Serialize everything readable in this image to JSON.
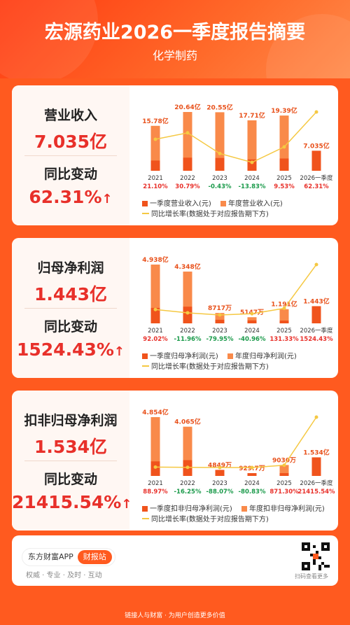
{
  "header": {
    "title": "宏源药业2026一季度报告摘要",
    "subtitle": "化学制药"
  },
  "sections": [
    {
      "metric_label": "营业收入",
      "metric_value": "7.035亿",
      "change_label": "同比变动",
      "change_value": "62.31%",
      "legend": {
        "q1": "一季度营业收入(元)",
        "annual": "年度营业收入(元)",
        "growth": "同比增长率(数据处于对应报告期下方)"
      },
      "chart_data": {
        "type": "bar",
        "categories": [
          "2021",
          "2022",
          "2023",
          "2024",
          "2025",
          "2026一季度"
        ],
        "annual_labels": [
          "15.78亿",
          "20.64亿",
          "20.55亿",
          "17.71亿",
          "19.39亿",
          "7.035亿"
        ],
        "annual_values": [
          15.78,
          20.64,
          20.55,
          17.71,
          19.39,
          null
        ],
        "q1_values": [
          3.6,
          4.6,
          4.5,
          4.0,
          4.3,
          7.035
        ],
        "growth_labels": [
          "21.10%",
          "30.79%",
          "-0.43%",
          "-13.83%",
          "9.53%",
          "62.31%"
        ],
        "growth_values": [
          21.1,
          30.79,
          -0.43,
          -13.83,
          9.53,
          62.31
        ]
      }
    },
    {
      "metric_label": "归母净利润",
      "metric_value": "1.443亿",
      "change_label": "同比变动",
      "change_value": "1524.43%",
      "legend": {
        "q1": "一季度归母净利润(元)",
        "annual": "年度归母净利润(元)",
        "growth": "同比增长率(数据处于对应报告期下方)"
      },
      "chart_data": {
        "type": "bar",
        "categories": [
          "2021",
          "2022",
          "2023",
          "2024",
          "2025",
          "2026一季度"
        ],
        "annual_labels": [
          "4.938亿",
          "4.348亿",
          "8717万",
          "5147万",
          "1.191亿",
          "1.443亿"
        ],
        "annual_values": [
          4.938,
          4.348,
          0.8717,
          0.5147,
          1.191,
          null
        ],
        "q1_values": [
          1.3,
          1.4,
          0.3,
          0.25,
          0.2,
          1.443
        ],
        "growth_labels": [
          "92.02%",
          "-11.96%",
          "-79.95%",
          "-40.96%",
          "131.33%",
          "1524.43%"
        ],
        "growth_values": [
          92.02,
          -11.96,
          -79.95,
          -40.96,
          131.33,
          1524.43
        ]
      }
    },
    {
      "metric_label": "扣非归母净利润",
      "metric_value": "1.534亿",
      "change_label": "同比变动",
      "change_value": "21415.54%",
      "legend": {
        "q1": "一季度扣非归母净利润(元)",
        "annual": "年度扣非归母净利润(元)",
        "growth": "同比增长率(数据处于对应报告期下方)"
      },
      "chart_data": {
        "type": "bar",
        "categories": [
          "2021",
          "2022",
          "2023",
          "2024",
          "2025",
          "2026一季度"
        ],
        "annual_labels": [
          "4.854亿",
          "4.065亿",
          "4849万",
          "929.7万",
          "9030万",
          "1.534亿"
        ],
        "annual_values": [
          4.854,
          4.065,
          0.4849,
          0.093,
          0.903,
          null
        ],
        "q1_values": [
          1.2,
          1.3,
          0.5,
          0.2,
          0.1,
          1.534
        ],
        "growth_labels": [
          "88.97%",
          "-16.25%",
          "-88.07%",
          "-80.83%",
          "871.30%",
          "21415.54%"
        ],
        "growth_values": [
          88.97,
          -16.25,
          -88.07,
          -80.83,
          871.3,
          21415.54
        ]
      }
    }
  ],
  "footer": {
    "app_name": "东方财富APP",
    "button": "财报站",
    "slogan": "权威 · 专业 · 及时 · 互动",
    "qr_caption": "扫码查看更多",
    "bottom_line": "链接人与财富 · 为用户创造更多价值"
  },
  "colors": {
    "q1_bar": "#f0531c",
    "annual_bar": "#f98a4a",
    "growth_line": "#f5c842",
    "red": "#e8302a",
    "green": "#1a9a4a"
  }
}
